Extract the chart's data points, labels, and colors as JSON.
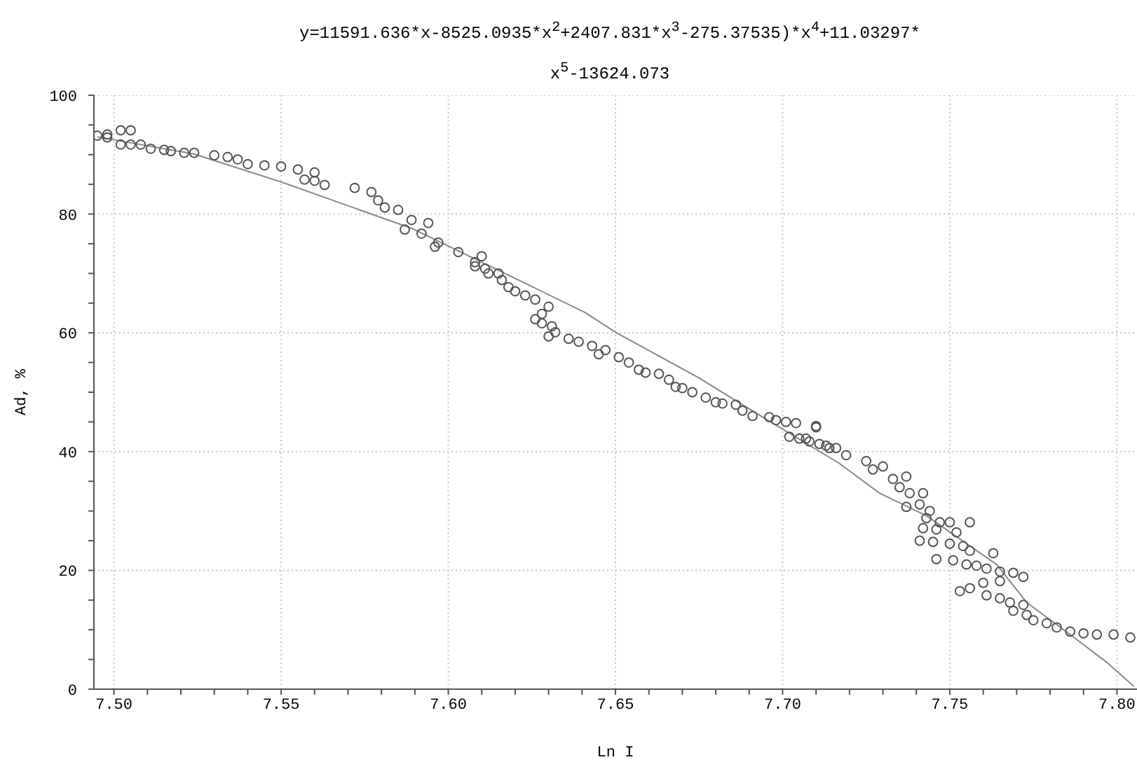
{
  "chart_data": {
    "type": "scatter",
    "title": "y=11591.636*x-8525.0935*x$^{2}$+2407.831*x$^{3}$-275.37535)*x$^{4}$+11.03297*x$^{5}$-13624.073",
    "xlabel": "Ln I",
    "ylabel": "Ad, %",
    "xlim": [
      7.494,
      7.806
    ],
    "ylim": [
      0,
      100
    ],
    "xticks": [
      {
        "value": 7.5,
        "label": "7.50"
      },
      {
        "value": 7.51,
        "label": null
      },
      {
        "value": 7.52,
        "label": null
      },
      {
        "value": 7.53,
        "label": null
      },
      {
        "value": 7.54,
        "label": null
      },
      7.55,
      {
        "value": 7.56,
        "label": null
      },
      {
        "value": 7.57,
        "label": null
      },
      {
        "value": 7.58,
        "label": null
      },
      {
        "value": 7.59,
        "label": null
      },
      {
        "value": 7.6,
        "label": "7.60"
      },
      {
        "value": 7.61,
        "label": null
      },
      {
        "value": 7.62,
        "label": null
      },
      {
        "value": 7.63,
        "label": null
      },
      {
        "value": 7.64,
        "label": null
      },
      7.65,
      {
        "value": 7.66,
        "label": null
      },
      {
        "value": 7.67,
        "label": null
      },
      {
        "value": 7.68,
        "label": null
      },
      {
        "value": 7.69,
        "label": null
      },
      {
        "value": 7.7,
        "label": "7.70"
      },
      {
        "value": 7.71,
        "label": null
      },
      {
        "value": 7.72,
        "label": null
      },
      {
        "value": 7.73,
        "label": null
      },
      {
        "value": 7.74,
        "label": null
      },
      7.75,
      {
        "value": 7.76,
        "label": null
      },
      {
        "value": 7.77,
        "label": null
      },
      {
        "value": 7.78,
        "label": null
      },
      {
        "value": 7.79,
        "label": null
      },
      {
        "value": 7.8,
        "label": "7.80"
      }
    ],
    "yticks": [
      0,
      {
        "value": 5,
        "label": null
      },
      {
        "value": 10,
        "label": null
      },
      {
        "value": 15,
        "label": null
      },
      20,
      {
        "value": 25,
        "label": null
      },
      {
        "value": 30,
        "label": null
      },
      {
        "value": 35,
        "label": null
      },
      40,
      {
        "value": 45,
        "label": null
      },
      {
        "value": 50,
        "label": null
      },
      {
        "value": 55,
        "label": null
      },
      60,
      {
        "value": 65,
        "label": null
      },
      {
        "value": 70,
        "label": null
      },
      {
        "value": 75,
        "label": null
      },
      80,
      {
        "value": 85,
        "label": null
      },
      {
        "value": 90,
        "label": null
      },
      {
        "value": 95,
        "label": null
      },
      100
    ],
    "grid": true,
    "marker": "circle",
    "series": [
      {
        "type": "scatter",
        "color": "#555555",
        "x": [
          7.495,
          7.498,
          7.498,
          7.502,
          7.505,
          7.502,
          7.505,
          7.508,
          7.511,
          7.515,
          7.517,
          7.521,
          7.524,
          7.53,
          7.534,
          7.537,
          7.54,
          7.545,
          7.55,
          7.555,
          7.557,
          7.56,
          7.56,
          7.563,
          7.572,
          7.577,
          7.579,
          7.581,
          7.585,
          7.587,
          7.589,
          7.594,
          7.592,
          7.596,
          7.597,
          7.603,
          7.608,
          7.61,
          7.611,
          7.615,
          7.608,
          7.612,
          7.616,
          7.618,
          7.62,
          7.623,
          7.626,
          7.63,
          7.628,
          7.626,
          7.628,
          7.631,
          7.63,
          7.632,
          7.636,
          7.639,
          7.643,
          7.645,
          7.647,
          7.651,
          7.654,
          7.657,
          7.659,
          7.663,
          7.666,
          7.668,
          7.67,
          7.673,
          7.677,
          7.68,
          7.682,
          7.686,
          7.688,
          7.691,
          7.696,
          7.698,
          7.701,
          7.704,
          7.71,
          7.702,
          7.705,
          7.708,
          7.711,
          7.713,
          7.716,
          7.707,
          7.71,
          7.714,
          7.719,
          7.725,
          7.727,
          7.73,
          7.733,
          7.737,
          7.735,
          7.738,
          7.737,
          7.742,
          7.741,
          7.744,
          7.743,
          7.747,
          7.75,
          7.756,
          7.742,
          7.746,
          7.752,
          7.741,
          7.745,
          7.75,
          7.754,
          7.756,
          7.763,
          7.746,
          7.751,
          7.755,
          7.758,
          7.761,
          7.765,
          7.769,
          7.772,
          7.765,
          7.753,
          7.756,
          7.76,
          7.761,
          7.765,
          7.768,
          7.772,
          7.769,
          7.773,
          7.775,
          7.779,
          7.782,
          7.786,
          7.79,
          7.794,
          7.799,
          7.804
        ],
        "values": [
          93.2,
          92.9,
          93.4,
          94.1,
          94.1,
          91.7,
          91.7,
          91.7,
          91.0,
          90.8,
          90.6,
          90.3,
          90.3,
          89.9,
          89.6,
          89.2,
          88.4,
          88.2,
          88.0,
          87.5,
          85.8,
          87.0,
          85.6,
          84.9,
          84.4,
          83.7,
          82.3,
          81.1,
          80.7,
          77.4,
          79.0,
          78.5,
          76.7,
          74.5,
          75.2,
          73.6,
          71.9,
          72.9,
          70.8,
          70.0,
          71.2,
          70.0,
          68.9,
          67.7,
          67.0,
          66.3,
          65.6,
          64.4,
          63.2,
          62.3,
          61.6,
          61.1,
          59.4,
          60.1,
          59.0,
          58.5,
          57.8,
          56.4,
          57.1,
          55.9,
          55.0,
          53.8,
          53.3,
          53.1,
          52.1,
          50.9,
          50.7,
          50.0,
          49.1,
          48.3,
          48.1,
          47.9,
          46.9,
          46.0,
          45.8,
          45.3,
          45.0,
          44.8,
          44.3,
          42.5,
          42.2,
          41.7,
          41.3,
          41.0,
          40.6,
          42.2,
          44.1,
          40.6,
          39.4,
          38.4,
          37.0,
          37.5,
          35.4,
          35.8,
          34.0,
          33.0,
          30.7,
          33.0,
          31.1,
          30.0,
          28.8,
          28.1,
          28.1,
          28.1,
          27.1,
          26.9,
          26.4,
          25.0,
          24.8,
          24.5,
          24.1,
          23.3,
          22.9,
          21.9,
          21.7,
          21.0,
          20.8,
          20.3,
          19.8,
          19.6,
          18.9,
          18.2,
          16.5,
          17.0,
          17.9,
          15.8,
          15.3,
          14.6,
          14.2,
          13.2,
          12.5,
          11.6,
          11.1,
          10.4,
          9.7,
          9.4,
          9.2,
          9.2,
          8.7
        ]
      },
      {
        "type": "line",
        "marker": "none",
        "color": "#888888",
        "x": [
          7.495,
          7.524,
          7.55,
          7.568,
          7.589,
          7.614,
          7.641,
          7.65,
          7.675,
          7.692,
          7.717,
          7.729,
          7.743,
          7.764,
          7.773,
          7.786,
          7.797,
          7.805
        ],
        "values": [
          93.0,
          90.1,
          85.4,
          81.8,
          77.6,
          70.8,
          63.4,
          60.1,
          52.4,
          46.5,
          38.0,
          33.0,
          29.2,
          21.0,
          14.6,
          9.2,
          4.5,
          0.5
        ]
      }
    ]
  }
}
